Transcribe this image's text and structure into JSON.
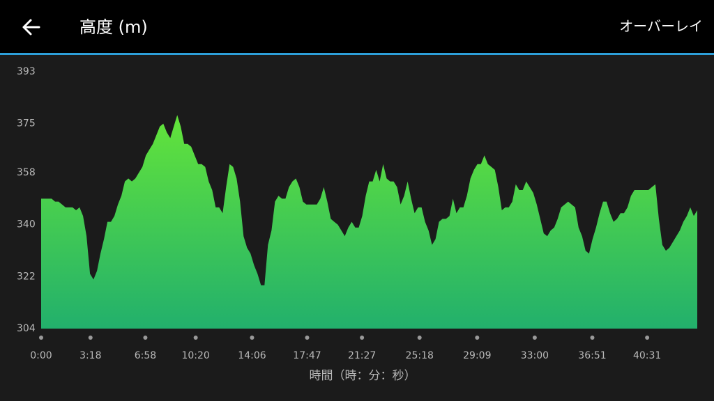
{
  "header": {
    "title": "高度 (m)",
    "action": "オーバーレイ"
  },
  "chart_data": {
    "type": "area",
    "x_label": "時間（時：分：秒）",
    "gradient": [
      "#63e43a",
      "#22b06c"
    ],
    "x": [
      0,
      14,
      28,
      42,
      56,
      70,
      84,
      98,
      112,
      126,
      140,
      154,
      168,
      182,
      196,
      210,
      224,
      238,
      252,
      266,
      280,
      294,
      308,
      322,
      336,
      350,
      364,
      378,
      392,
      406,
      420,
      434,
      448,
      462,
      476,
      490,
      504,
      518,
      532,
      546,
      560,
      574,
      588,
      602,
      616,
      630,
      644,
      658,
      672,
      686,
      700,
      714,
      728,
      742,
      756,
      770,
      784,
      798,
      812,
      826,
      840,
      854,
      868,
      882,
      896,
      910,
      924,
      938,
      952,
      966,
      980,
      994,
      1008,
      1022,
      1036,
      1050,
      1064,
      1078,
      1092,
      1106,
      1120,
      1134,
      1148,
      1162,
      1176,
      1190,
      1204,
      1218,
      1232,
      1246,
      1260,
      1274,
      1288,
      1302,
      1316,
      1330,
      1344,
      1358,
      1372,
      1386,
      1400,
      1414,
      1428,
      1442,
      1456,
      1470,
      1484,
      1498,
      1512,
      1526,
      1540,
      1554,
      1568,
      1582,
      1596,
      1610,
      1624,
      1638,
      1652,
      1666,
      1680,
      1694,
      1708,
      1722,
      1736,
      1750,
      1764,
      1778,
      1792,
      1806,
      1820,
      1834,
      1848,
      1862,
      1876,
      1890,
      1904,
      1918,
      1932,
      1946,
      1960,
      1974,
      1988,
      2002,
      2016,
      2030,
      2044,
      2058,
      2072,
      2086,
      2100,
      2114,
      2128,
      2142,
      2156,
      2170,
      2184,
      2198,
      2212,
      2226,
      2240,
      2254,
      2268,
      2282,
      2296,
      2310,
      2324,
      2338,
      2352,
      2366,
      2380,
      2394,
      2408,
      2422,
      2436,
      2450,
      2464,
      2478,
      2492,
      2506,
      2520,
      2534,
      2548,
      2562,
      2576,
      2590,
      2604,
      2618,
      2632
    ],
    "values": [
      349,
      349,
      349,
      349,
      348,
      348,
      347,
      346,
      346,
      346,
      345,
      346,
      343,
      336,
      323,
      321,
      324,
      330,
      335,
      341,
      341,
      343,
      347,
      350,
      355,
      356,
      355,
      356,
      358,
      360,
      364,
      366,
      368,
      371,
      374,
      375,
      372,
      370,
      374,
      378,
      374,
      368,
      368,
      367,
      364,
      361,
      361,
      360,
      355,
      352,
      346,
      346,
      344,
      353,
      361,
      360,
      356,
      348,
      336,
      332,
      330,
      326,
      323,
      319,
      319,
      333,
      338,
      348,
      350,
      349,
      349,
      353,
      355,
      356,
      353,
      348,
      347,
      347,
      347,
      347,
      349,
      353,
      348,
      342,
      341,
      340,
      338,
      336,
      339,
      341,
      339,
      339,
      343,
      350,
      355,
      355,
      359,
      355,
      361,
      356,
      355,
      355,
      353,
      347,
      350,
      355,
      349,
      344,
      346,
      346,
      341,
      338,
      333,
      335,
      341,
      342,
      342,
      343,
      349,
      344,
      346,
      346,
      350,
      356,
      359,
      361,
      361,
      364,
      361,
      360,
      359,
      353,
      345,
      346,
      346,
      348,
      354,
      352,
      352,
      355,
      353,
      351,
      347,
      342,
      337,
      336,
      338,
      339,
      342,
      346,
      347,
      348,
      347,
      346,
      339,
      336,
      331,
      330,
      335,
      339,
      344,
      348,
      348,
      344,
      341,
      342,
      344,
      344,
      346,
      350,
      352,
      352,
      352,
      352,
      352,
      353,
      354,
      342,
      333,
      331,
      332,
      334,
      336,
      338,
      341,
      343,
      346,
      343,
      345
    ],
    "xlim": [
      0,
      2632
    ],
    "ylim": [
      304,
      393
    ],
    "yticks": [
      304,
      322,
      340,
      358,
      375,
      393
    ],
    "xticks": [
      {
        "value": 0,
        "label": "0:00"
      },
      {
        "value": 198,
        "label": "3:18"
      },
      {
        "value": 418,
        "label": "6:58"
      },
      {
        "value": 620,
        "label": "10:20"
      },
      {
        "value": 846,
        "label": "14:06"
      },
      {
        "value": 1067,
        "label": "17:47"
      },
      {
        "value": 1287,
        "label": "21:27"
      },
      {
        "value": 1518,
        "label": "25:18"
      },
      {
        "value": 1749,
        "label": "29:09"
      },
      {
        "value": 1980,
        "label": "33:00"
      },
      {
        "value": 2211,
        "label": "36:51"
      },
      {
        "value": 2431,
        "label": "40:31"
      }
    ]
  }
}
